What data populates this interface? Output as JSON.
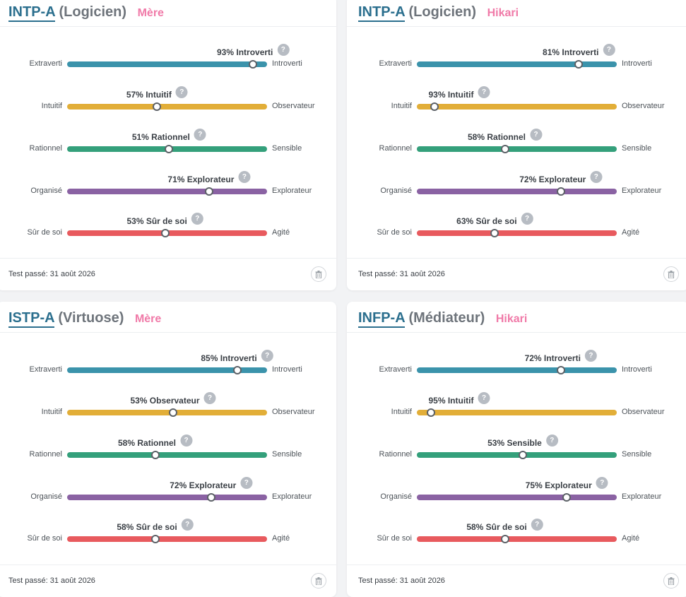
{
  "cards": [
    {
      "type_code": "INTP-A",
      "type_name": "(Logicien)",
      "person": "Mère",
      "test_date": "Test passé: 31 août 2026",
      "traits": [
        {
          "pct_label": "93% Introverti",
          "left": "Extraverti",
          "right": "Introverti",
          "value": 93,
          "color": "#3b93ab"
        },
        {
          "pct_label": "57% Intuitif",
          "left": "Intuitif",
          "right": "Observateur",
          "value": 45,
          "color": "#e2ae38"
        },
        {
          "pct_label": "51% Rationnel",
          "left": "Rationnel",
          "right": "Sensible",
          "value": 51,
          "color": "#34a07b"
        },
        {
          "pct_label": "71% Explorateur",
          "left": "Organisé",
          "right": "Explorateur",
          "value": 71,
          "color": "#8a62a3"
        },
        {
          "pct_label": "53% Sûr de soi",
          "left": "Sûr de soi",
          "right": "Agité",
          "value": 49,
          "color": "#e85a5e"
        }
      ]
    },
    {
      "type_code": "INTP-A",
      "type_name": "(Logicien)",
      "person": "Hikari",
      "test_date": "Test passé: 31 août 2026",
      "traits": [
        {
          "pct_label": "81% Introverti",
          "left": "Extraverti",
          "right": "Introverti",
          "value": 81,
          "color": "#3b93ab"
        },
        {
          "pct_label": "93% Intuitif",
          "left": "Intuitif",
          "right": "Observateur",
          "value": 9,
          "color": "#e2ae38"
        },
        {
          "pct_label": "58% Rationnel",
          "left": "Rationnel",
          "right": "Sensible",
          "value": 44,
          "color": "#34a07b"
        },
        {
          "pct_label": "72% Explorateur",
          "left": "Organisé",
          "right": "Explorateur",
          "value": 72,
          "color": "#8a62a3"
        },
        {
          "pct_label": "63% Sûr de soi",
          "left": "Sûr de soi",
          "right": "Agité",
          "value": 39,
          "color": "#e85a5e"
        }
      ]
    },
    {
      "type_code": "ISTP-A",
      "type_name": "(Virtuose)",
      "person": "Mère",
      "test_date": "Test passé: 31 août 2026",
      "traits": [
        {
          "pct_label": "85% Introverti",
          "left": "Extraverti",
          "right": "Introverti",
          "value": 85,
          "color": "#3b93ab"
        },
        {
          "pct_label": "53% Observateur",
          "left": "Intuitif",
          "right": "Observateur",
          "value": 53,
          "color": "#e2ae38"
        },
        {
          "pct_label": "58% Rationnel",
          "left": "Rationnel",
          "right": "Sensible",
          "value": 44,
          "color": "#34a07b"
        },
        {
          "pct_label": "72% Explorateur",
          "left": "Organisé",
          "right": "Explorateur",
          "value": 72,
          "color": "#8a62a3"
        },
        {
          "pct_label": "58% Sûr de soi",
          "left": "Sûr de soi",
          "right": "Agité",
          "value": 44,
          "color": "#e85a5e"
        }
      ]
    },
    {
      "type_code": "INFP-A",
      "type_name": "(Médiateur)",
      "person": "Hikari",
      "test_date": "Test passé: 31 août 2026",
      "traits": [
        {
          "pct_label": "72% Introverti",
          "left": "Extraverti",
          "right": "Introverti",
          "value": 72,
          "color": "#3b93ab"
        },
        {
          "pct_label": "95% Intuitif",
          "left": "Intuitif",
          "right": "Observateur",
          "value": 7,
          "color": "#e2ae38"
        },
        {
          "pct_label": "53% Sensible",
          "left": "Rationnel",
          "right": "Sensible",
          "value": 53,
          "color": "#34a07b"
        },
        {
          "pct_label": "75% Explorateur",
          "left": "Organisé",
          "right": "Explorateur",
          "value": 75,
          "color": "#8a62a3"
        },
        {
          "pct_label": "58% Sûr de soi",
          "left": "Sûr de soi",
          "right": "Agité",
          "value": 44,
          "color": "#e85a5e"
        }
      ]
    }
  ]
}
